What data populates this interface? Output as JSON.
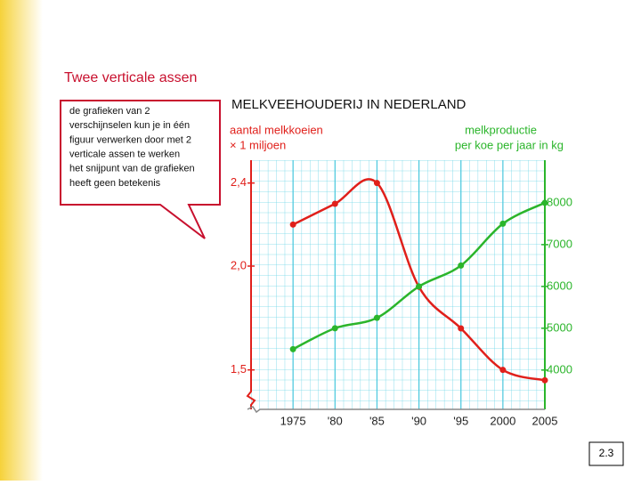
{
  "slide": {
    "title": "Twee verticale assen",
    "callout": [
      "de grafieken van  2",
      "verschijnselen kun je in één",
      "figuur verwerken door met 2",
      "verticale assen te werken",
      "het snijpunt van de grafieken",
      "heeft geen betekenis"
    ],
    "page_number": "2.3"
  },
  "chart_data": {
    "type": "line",
    "title": "MELKVEEHOUDERIJ IN NEDERLAND",
    "ylabel": [
      "aantal melkkoeien",
      "× 1 miljoen"
    ],
    "y2label": [
      "melkproductie",
      "per koe per jaar in kg"
    ],
    "x": [
      1975,
      1980,
      1985,
      1990,
      1995,
      2000,
      2005
    ],
    "series": [
      {
        "name": "aantal melkkoeien",
        "color": "#e0201b",
        "values": [
          2.2,
          2.3,
          2.4,
          1.9,
          1.7,
          1.5,
          1.45
        ]
      },
      {
        "name": "melkproductie",
        "color": "#2bb52b",
        "axis": "y2",
        "values": [
          4500,
          5000,
          5250,
          6000,
          6500,
          7500,
          8000
        ]
      }
    ],
    "xlim": [
      1970,
      2005
    ],
    "xticks": [
      1975,
      {
        "value": 1980,
        "label": "'80"
      },
      {
        "value": 1985,
        "label": "'85"
      },
      {
        "value": 1990,
        "label": "'90"
      },
      {
        "value": 1995,
        "label": "'95"
      },
      2000,
      2005
    ],
    "ylim": [
      1.31,
      2.51
    ],
    "yticks": [
      {
        "value": 1.5,
        "label": "1,5"
      },
      {
        "value": 2.0,
        "label": "2,0"
      },
      {
        "value": 2.4,
        "label": "2,4"
      }
    ],
    "y2lim": [
      3060,
      9020
    ],
    "y2ticks": [
      4000,
      5000,
      6000,
      7000,
      8000
    ],
    "grid": true
  }
}
